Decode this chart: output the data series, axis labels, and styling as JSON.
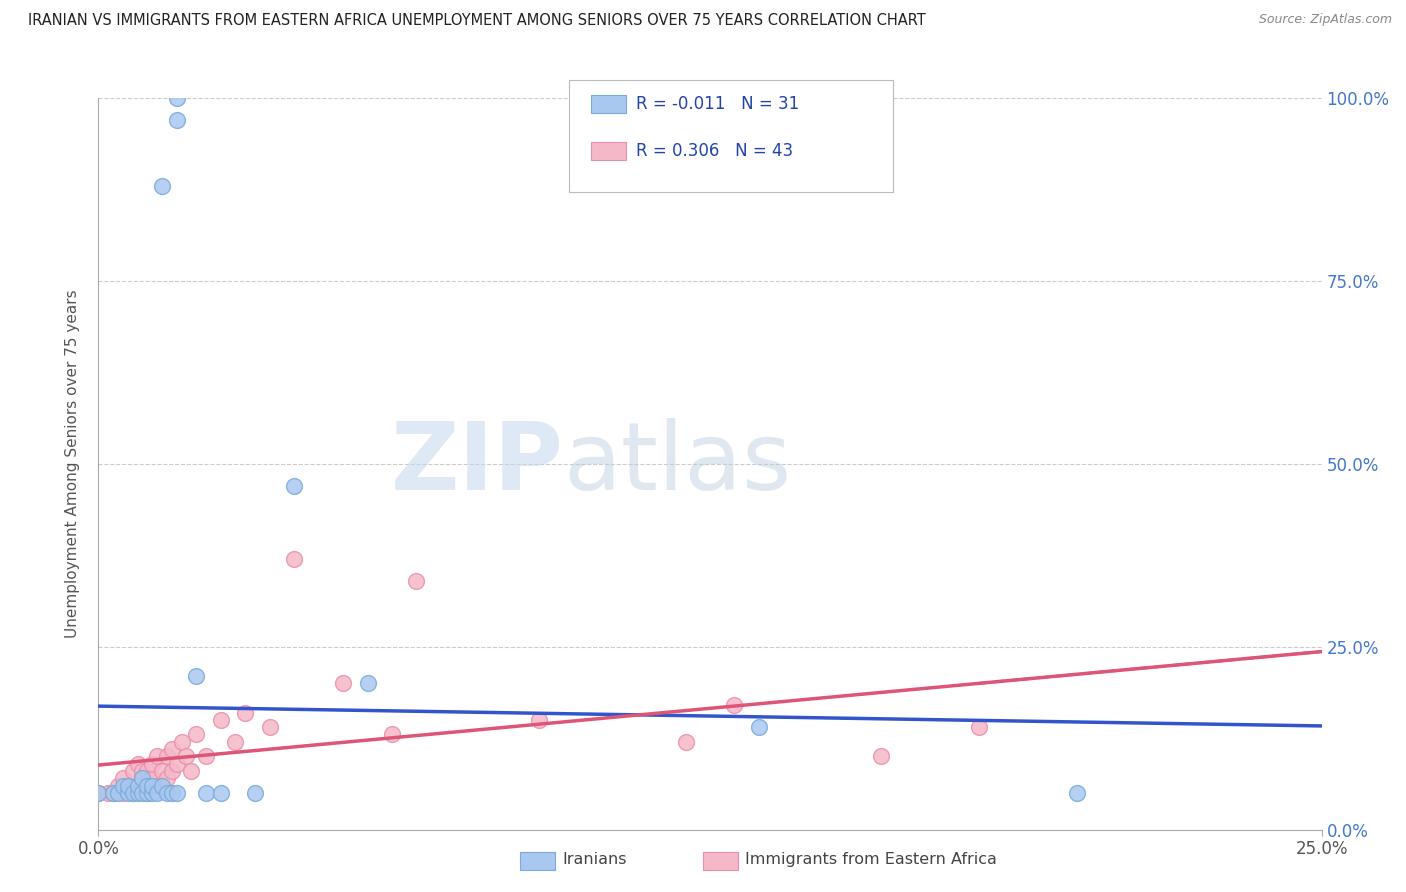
{
  "title": "IRANIAN VS IMMIGRANTS FROM EASTERN AFRICA UNEMPLOYMENT AMONG SENIORS OVER 75 YEARS CORRELATION CHART",
  "source": "Source: ZipAtlas.com",
  "ylabel": "Unemployment Among Seniors over 75 years",
  "yticks_labels": [
    "0.0%",
    "25.0%",
    "50.0%",
    "75.0%",
    "100.0%"
  ],
  "ytick_vals": [
    0.0,
    0.25,
    0.5,
    0.75,
    1.0
  ],
  "xlim": [
    0.0,
    0.25
  ],
  "ylim": [
    0.0,
    1.0
  ],
  "legend_iranians_R": "-0.011",
  "legend_iranians_N": "31",
  "legend_eastern_R": "0.306",
  "legend_eastern_N": "43",
  "color_iranian_fill": "#A8C8F0",
  "color_iranian_edge": "#7BAAD8",
  "color_eastern_fill": "#F5B8C8",
  "color_eastern_edge": "#E890A8",
  "color_trend_iranian": "#3355CC",
  "color_trend_eastern": "#DD5577",
  "watermark_zip": "ZIP",
  "watermark_atlas": "atlas",
  "iranians_x": [
    0.016,
    0.016,
    0.013,
    0.0,
    0.003,
    0.004,
    0.005,
    0.006,
    0.006,
    0.007,
    0.008,
    0.008,
    0.009,
    0.009,
    0.01,
    0.01,
    0.011,
    0.011,
    0.012,
    0.013,
    0.014,
    0.015,
    0.016,
    0.02,
    0.022,
    0.025,
    0.032,
    0.04,
    0.055,
    0.135,
    0.2
  ],
  "iranians_y": [
    1.0,
    0.97,
    0.88,
    0.05,
    0.05,
    0.05,
    0.06,
    0.05,
    0.06,
    0.05,
    0.05,
    0.06,
    0.05,
    0.07,
    0.05,
    0.06,
    0.05,
    0.06,
    0.05,
    0.06,
    0.05,
    0.05,
    0.05,
    0.21,
    0.05,
    0.05,
    0.05,
    0.47,
    0.2,
    0.14,
    0.05
  ],
  "eastern_x": [
    0.0,
    0.002,
    0.003,
    0.004,
    0.005,
    0.005,
    0.006,
    0.007,
    0.007,
    0.008,
    0.008,
    0.009,
    0.009,
    0.01,
    0.01,
    0.011,
    0.011,
    0.012,
    0.012,
    0.013,
    0.014,
    0.014,
    0.015,
    0.015,
    0.016,
    0.017,
    0.018,
    0.019,
    0.02,
    0.022,
    0.025,
    0.028,
    0.03,
    0.035,
    0.04,
    0.05,
    0.06,
    0.065,
    0.09,
    0.12,
    0.13,
    0.16,
    0.18
  ],
  "eastern_y": [
    0.05,
    0.05,
    0.05,
    0.06,
    0.05,
    0.07,
    0.06,
    0.05,
    0.08,
    0.06,
    0.09,
    0.07,
    0.08,
    0.05,
    0.08,
    0.07,
    0.09,
    0.06,
    0.1,
    0.08,
    0.07,
    0.1,
    0.08,
    0.11,
    0.09,
    0.12,
    0.1,
    0.08,
    0.13,
    0.1,
    0.15,
    0.12,
    0.16,
    0.14,
    0.37,
    0.2,
    0.13,
    0.34,
    0.15,
    0.12,
    0.17,
    0.1,
    0.14
  ]
}
